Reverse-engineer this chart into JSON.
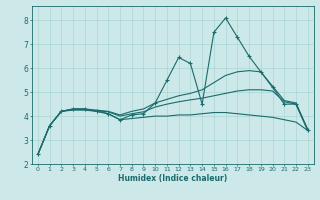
{
  "xlabel": "Humidex (Indice chaleur)",
  "bg_color": "#cce8e8",
  "line_color": "#1a6b6b",
  "grid_color": "#aad4d4",
  "xlim": [
    -0.5,
    23.5
  ],
  "ylim": [
    2.0,
    8.6
  ],
  "xticks": [
    0,
    1,
    2,
    3,
    4,
    5,
    6,
    7,
    8,
    9,
    10,
    11,
    12,
    13,
    14,
    15,
    16,
    17,
    18,
    19,
    20,
    21,
    22,
    23
  ],
  "yticks": [
    2,
    3,
    4,
    5,
    6,
    7,
    8
  ],
  "smooth_lines": [
    [
      2.4,
      3.6,
      4.2,
      4.25,
      4.25,
      4.2,
      4.1,
      3.85,
      3.9,
      3.95,
      4.0,
      4.0,
      4.05,
      4.05,
      4.1,
      4.15,
      4.15,
      4.1,
      4.05,
      4.0,
      3.95,
      3.85,
      3.75,
      3.4
    ],
    [
      2.4,
      3.6,
      4.2,
      4.28,
      4.28,
      4.22,
      4.18,
      4.0,
      4.1,
      4.18,
      4.38,
      4.5,
      4.6,
      4.68,
      4.75,
      4.85,
      4.95,
      5.05,
      5.1,
      5.1,
      5.05,
      4.6,
      4.5,
      3.4
    ],
    [
      2.4,
      3.6,
      4.2,
      4.3,
      4.3,
      4.25,
      4.2,
      4.05,
      4.2,
      4.3,
      4.55,
      4.7,
      4.85,
      4.95,
      5.1,
      5.4,
      5.7,
      5.85,
      5.9,
      5.85,
      5.25,
      4.65,
      4.55,
      3.45
    ]
  ],
  "data_line_x": [
    0,
    1,
    2,
    3,
    4,
    5,
    6,
    7,
    8,
    9,
    10,
    11,
    12,
    13,
    14,
    15,
    16,
    17,
    18,
    19,
    20,
    21,
    22,
    23
  ],
  "data_line_y": [
    2.4,
    3.6,
    4.2,
    4.3,
    4.3,
    4.2,
    4.1,
    3.85,
    4.05,
    4.1,
    4.55,
    5.5,
    6.45,
    6.2,
    4.5,
    7.5,
    8.1,
    7.3,
    6.5,
    5.85,
    5.2,
    4.5,
    4.5,
    3.4
  ]
}
